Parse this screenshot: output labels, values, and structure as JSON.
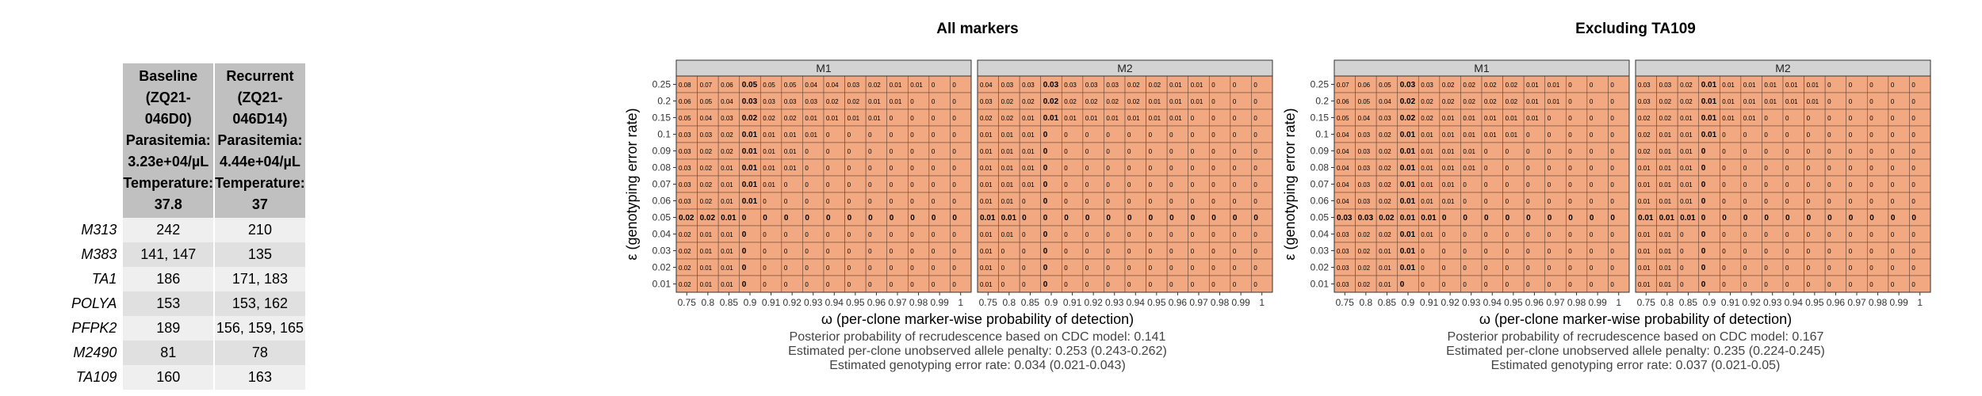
{
  "table": {
    "columns": [
      {
        "lines": [
          "Baseline",
          "(ZQ21-046D0)",
          "Parasitemia: 3.23e+04/µL",
          "Temperature: 37.8"
        ]
      },
      {
        "lines": [
          "Recurrent",
          "(ZQ21-046D14)",
          "Parasitemia: 4.44e+04/µL",
          "Temperature: 37"
        ]
      }
    ],
    "rows": [
      {
        "marker": "M313",
        "baseline": "242",
        "recurrent": "210"
      },
      {
        "marker": "M383",
        "baseline": "141, 147",
        "recurrent": "135"
      },
      {
        "marker": "TA1",
        "baseline": "186",
        "recurrent": "171, 183"
      },
      {
        "marker": "POLYA",
        "baseline": "153",
        "recurrent": "153, 162"
      },
      {
        "marker": "PFPK2",
        "baseline": "189",
        "recurrent": "156, 159, 165"
      },
      {
        "marker": "M2490",
        "baseline": "81",
        "recurrent": "78"
      },
      {
        "marker": "TA109",
        "baseline": "160",
        "recurrent": "163"
      }
    ]
  },
  "colors": {
    "cell_fill": "#f2a880",
    "panel_header": "#d3d3d3",
    "table_header": "#c0c0c0"
  },
  "chart_data": [
    {
      "type": "heatmap",
      "title": "All markers",
      "xlabel": "ω (per-clone marker-wise probability of detection)",
      "ylabel": "ε (genotyping error rate)",
      "x_ticks": [
        "0.75",
        "0.8",
        "0.85",
        "0.9",
        "0.91",
        "0.92",
        "0.93",
        "0.94",
        "0.95",
        "0.96",
        "0.97",
        "0.98",
        "0.99",
        "1"
      ],
      "y_ticks": [
        "0.25",
        "0.2",
        "0.15",
        "0.1",
        "0.09",
        "0.08",
        "0.07",
        "0.06",
        "0.05",
        "0.04",
        "0.03",
        "0.02",
        "0.01"
      ],
      "panels": [
        {
          "name": "M1",
          "values": [
            [
              "0.08",
              "0.07",
              "0.06",
              "0.05",
              "0.05",
              "0.05",
              "0.04",
              "0.04",
              "0.03",
              "0.02",
              "0.01",
              "0.01",
              "0",
              "0"
            ],
            [
              "0.06",
              "0.05",
              "0.04",
              "0.03",
              "0.03",
              "0.03",
              "0.03",
              "0.02",
              "0.02",
              "0.01",
              "0.01",
              "0",
              "0",
              "0"
            ],
            [
              "0.05",
              "0.04",
              "0.03",
              "0.02",
              "0.02",
              "0.02",
              "0.01",
              "0.01",
              "0.01",
              "0.01",
              "0",
              "0",
              "0",
              "0"
            ],
            [
              "0.03",
              "0.03",
              "0.02",
              "0.01",
              "0.01",
              "0.01",
              "0.01",
              "0",
              "0",
              "0",
              "0",
              "0",
              "0",
              "0"
            ],
            [
              "0.03",
              "0.02",
              "0.02",
              "0.01",
              "0.01",
              "0.01",
              "0",
              "0",
              "0",
              "0",
              "0",
              "0",
              "0",
              "0"
            ],
            [
              "0.03",
              "0.02",
              "0.01",
              "0.01",
              "0.01",
              "0.01",
              "0",
              "0",
              "0",
              "0",
              "0",
              "0",
              "0",
              "0"
            ],
            [
              "0.03",
              "0.02",
              "0.01",
              "0.01",
              "0.01",
              "0",
              "0",
              "0",
              "0",
              "0",
              "0",
              "0",
              "0",
              "0"
            ],
            [
              "0.03",
              "0.02",
              "0.01",
              "0.01",
              "0",
              "0",
              "0",
              "0",
              "0",
              "0",
              "0",
              "0",
              "0",
              "0"
            ],
            [
              "0.02",
              "0.02",
              "0.01",
              "0",
              "0",
              "0",
              "0",
              "0",
              "0",
              "0",
              "0",
              "0",
              "0",
              "0"
            ],
            [
              "0.02",
              "0.01",
              "0.01",
              "0",
              "0",
              "0",
              "0",
              "0",
              "0",
              "0",
              "0",
              "0",
              "0",
              "0"
            ],
            [
              "0.02",
              "0.01",
              "0.01",
              "0",
              "0",
              "0",
              "0",
              "0",
              "0",
              "0",
              "0",
              "0",
              "0",
              "0"
            ],
            [
              "0.02",
              "0.01",
              "0.01",
              "0",
              "0",
              "0",
              "0",
              "0",
              "0",
              "0",
              "0",
              "0",
              "0",
              "0"
            ],
            [
              "0.02",
              "0.01",
              "0.01",
              "0",
              "0",
              "0",
              "0",
              "0",
              "0",
              "0",
              "0",
              "0",
              "0",
              "0"
            ]
          ]
        },
        {
          "name": "M2",
          "values": [
            [
              "0.04",
              "0.03",
              "0.03",
              "0.03",
              "0.03",
              "0.03",
              "0.03",
              "0.02",
              "0.02",
              "0.01",
              "0.01",
              "0",
              "0",
              "0"
            ],
            [
              "0.03",
              "0.02",
              "0.02",
              "0.02",
              "0.02",
              "0.02",
              "0.02",
              "0.02",
              "0.01",
              "0.01",
              "0.01",
              "0",
              "0",
              "0"
            ],
            [
              "0.02",
              "0.02",
              "0.01",
              "0.01",
              "0.01",
              "0.01",
              "0.01",
              "0.01",
              "0.01",
              "0.01",
              "0",
              "0",
              "0",
              "0"
            ],
            [
              "0.01",
              "0.01",
              "0.01",
              "0",
              "0",
              "0",
              "0",
              "0",
              "0",
              "0",
              "0",
              "0",
              "0",
              "0"
            ],
            [
              "0.01",
              "0.01",
              "0.01",
              "0",
              "0",
              "0",
              "0",
              "0",
              "0",
              "0",
              "0",
              "0",
              "0",
              "0"
            ],
            [
              "0.01",
              "0.01",
              "0.01",
              "0",
              "0",
              "0",
              "0",
              "0",
              "0",
              "0",
              "0",
              "0",
              "0",
              "0"
            ],
            [
              "0.01",
              "0.01",
              "0.01",
              "0",
              "0",
              "0",
              "0",
              "0",
              "0",
              "0",
              "0",
              "0",
              "0",
              "0"
            ],
            [
              "0.01",
              "0.01",
              "0",
              "0",
              "0",
              "0",
              "0",
              "0",
              "0",
              "0",
              "0",
              "0",
              "0",
              "0"
            ],
            [
              "0.01",
              "0.01",
              "0",
              "0",
              "0",
              "0",
              "0",
              "0",
              "0",
              "0",
              "0",
              "0",
              "0",
              "0"
            ],
            [
              "0.01",
              "0.01",
              "0",
              "0",
              "0",
              "0",
              "0",
              "0",
              "0",
              "0",
              "0",
              "0",
              "0",
              "0"
            ],
            [
              "0.01",
              "0",
              "0",
              "0",
              "0",
              "0",
              "0",
              "0",
              "0",
              "0",
              "0",
              "0",
              "0",
              "0"
            ],
            [
              "0.01",
              "0",
              "0",
              "0",
              "0",
              "0",
              "0",
              "0",
              "0",
              "0",
              "0",
              "0",
              "0",
              "0"
            ],
            [
              "0.01",
              "0",
              "0",
              "0",
              "0",
              "0",
              "0",
              "0",
              "0",
              "0",
              "0",
              "0",
              "0",
              "0"
            ]
          ]
        }
      ],
      "bold_column": "0.9",
      "bold_row": "0.05",
      "footer": [
        "Posterior probability of recrudescence based on CDC model: 0.141",
        "Estimated per-clone unobserved allele penalty: 0.253 (0.243-0.262)",
        "Estimated genotyping error rate: 0.034 (0.021-0.043)"
      ]
    },
    {
      "type": "heatmap",
      "title": "Excluding TA109",
      "xlabel": "ω (per-clone marker-wise probability of detection)",
      "ylabel": "ε (genotyping error rate)",
      "x_ticks": [
        "0.75",
        "0.8",
        "0.85",
        "0.9",
        "0.91",
        "0.92",
        "0.93",
        "0.94",
        "0.95",
        "0.96",
        "0.97",
        "0.98",
        "0.99",
        "1"
      ],
      "y_ticks": [
        "0.25",
        "0.2",
        "0.15",
        "0.1",
        "0.09",
        "0.08",
        "0.07",
        "0.06",
        "0.05",
        "0.04",
        "0.03",
        "0.02",
        "0.01"
      ],
      "panels": [
        {
          "name": "M1",
          "values": [
            [
              "0.07",
              "0.06",
              "0.05",
              "0.03",
              "0.03",
              "0.02",
              "0.02",
              "0.02",
              "0.02",
              "0.01",
              "0.01",
              "0",
              "0",
              "0"
            ],
            [
              "0.06",
              "0.05",
              "0.04",
              "0.02",
              "0.02",
              "0.02",
              "0.02",
              "0.02",
              "0.02",
              "0.01",
              "0.01",
              "0",
              "0",
              "0"
            ],
            [
              "0.05",
              "0.04",
              "0.03",
              "0.02",
              "0.02",
              "0.01",
              "0.01",
              "0.01",
              "0.01",
              "0.01",
              "0",
              "0",
              "0",
              "0"
            ],
            [
              "0.04",
              "0.03",
              "0.02",
              "0.01",
              "0.01",
              "0.01",
              "0.01",
              "0.01",
              "0.01",
              "0",
              "0",
              "0",
              "0",
              "0"
            ],
            [
              "0.04",
              "0.03",
              "0.02",
              "0.01",
              "0.01",
              "0.01",
              "0.01",
              "0",
              "0",
              "0",
              "0",
              "0",
              "0",
              "0"
            ],
            [
              "0.04",
              "0.03",
              "0.02",
              "0.01",
              "0.01",
              "0.01",
              "0.01",
              "0",
              "0",
              "0",
              "0",
              "0",
              "0",
              "0"
            ],
            [
              "0.04",
              "0.03",
              "0.02",
              "0.01",
              "0.01",
              "0.01",
              "0",
              "0",
              "0",
              "0",
              "0",
              "0",
              "0",
              "0"
            ],
            [
              "0.04",
              "0.03",
              "0.02",
              "0.01",
              "0.01",
              "0.01",
              "0",
              "0",
              "0",
              "0",
              "0",
              "0",
              "0",
              "0"
            ],
            [
              "0.03",
              "0.03",
              "0.02",
              "0.01",
              "0.01",
              "0",
              "0",
              "0",
              "0",
              "0",
              "0",
              "0",
              "0",
              "0"
            ],
            [
              "0.03",
              "0.02",
              "0.02",
              "0.01",
              "0.01",
              "0",
              "0",
              "0",
              "0",
              "0",
              "0",
              "0",
              "0",
              "0"
            ],
            [
              "0.03",
              "0.02",
              "0.01",
              "0.01",
              "0",
              "0",
              "0",
              "0",
              "0",
              "0",
              "0",
              "0",
              "0",
              "0"
            ],
            [
              "0.03",
              "0.02",
              "0.01",
              "0.01",
              "0",
              "0",
              "0",
              "0",
              "0",
              "0",
              "0",
              "0",
              "0",
              "0"
            ],
            [
              "0.03",
              "0.02",
              "0.01",
              "0",
              "0",
              "0",
              "0",
              "0",
              "0",
              "0",
              "0",
              "0",
              "0",
              "0"
            ]
          ]
        },
        {
          "name": "M2",
          "values": [
            [
              "0.03",
              "0.03",
              "0.02",
              "0.01",
              "0.01",
              "0.01",
              "0.01",
              "0.01",
              "0.01",
              "0",
              "0",
              "0",
              "0",
              "0"
            ],
            [
              "0.03",
              "0.02",
              "0.02",
              "0.01",
              "0.01",
              "0.01",
              "0.01",
              "0.01",
              "0.01",
              "0",
              "0",
              "0",
              "0",
              "0"
            ],
            [
              "0.02",
              "0.02",
              "0.01",
              "0.01",
              "0.01",
              "0.01",
              "0",
              "0",
              "0",
              "0",
              "0",
              "0",
              "0",
              "0"
            ],
            [
              "0.02",
              "0.01",
              "0.01",
              "0.01",
              "0",
              "0",
              "0",
              "0",
              "0",
              "0",
              "0",
              "0",
              "0",
              "0"
            ],
            [
              "0.02",
              "0.01",
              "0.01",
              "0",
              "0",
              "0",
              "0",
              "0",
              "0",
              "0",
              "0",
              "0",
              "0",
              "0"
            ],
            [
              "0.01",
              "0.01",
              "0.01",
              "0",
              "0",
              "0",
              "0",
              "0",
              "0",
              "0",
              "0",
              "0",
              "0",
              "0"
            ],
            [
              "0.01",
              "0.01",
              "0.01",
              "0",
              "0",
              "0",
              "0",
              "0",
              "0",
              "0",
              "0",
              "0",
              "0",
              "0"
            ],
            [
              "0.01",
              "0.01",
              "0.01",
              "0",
              "0",
              "0",
              "0",
              "0",
              "0",
              "0",
              "0",
              "0",
              "0",
              "0"
            ],
            [
              "0.01",
              "0.01",
              "0.01",
              "0",
              "0",
              "0",
              "0",
              "0",
              "0",
              "0",
              "0",
              "0",
              "0",
              "0"
            ],
            [
              "0.01",
              "0.01",
              "0",
              "0",
              "0",
              "0",
              "0",
              "0",
              "0",
              "0",
              "0",
              "0",
              "0",
              "0"
            ],
            [
              "0.01",
              "0.01",
              "0",
              "0",
              "0",
              "0",
              "0",
              "0",
              "0",
              "0",
              "0",
              "0",
              "0",
              "0"
            ],
            [
              "0.01",
              "0.01",
              "0",
              "0",
              "0",
              "0",
              "0",
              "0",
              "0",
              "0",
              "0",
              "0",
              "0",
              "0"
            ],
            [
              "0.01",
              "0.01",
              "0",
              "0",
              "0",
              "0",
              "0",
              "0",
              "0",
              "0",
              "0",
              "0",
              "0",
              "0"
            ]
          ]
        }
      ],
      "bold_column": "0.9",
      "bold_row": "0.05",
      "footer": [
        "Posterior probability of recrudescence based on CDC model: 0.167",
        "Estimated per-clone unobserved allele penalty: 0.235 (0.224-0.245)",
        "Estimated genotyping error rate: 0.037 (0.021-0.05)"
      ]
    }
  ]
}
